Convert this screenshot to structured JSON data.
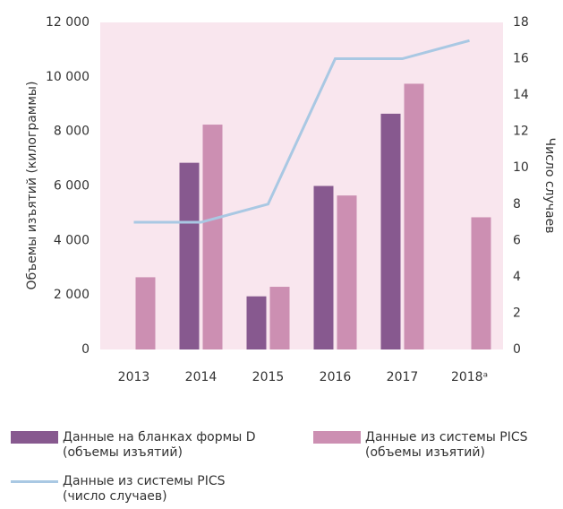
{
  "chart_data": {
    "type": "bar",
    "categories": [
      "2013",
      "2014",
      "2015",
      "2016",
      "2017",
      "2018ᵃ"
    ],
    "series": [
      {
        "name": "Данные на бланках формы D\n(объемы изъятий)",
        "color": "#87598f",
        "values": [
          null,
          6850,
          1950,
          6000,
          8650,
          null
        ]
      },
      {
        "name": "Данные из системы PICS\n(объемы изъятий)",
        "color": "#cc8fb2",
        "values": [
          2650,
          8250,
          2300,
          5650,
          9750,
          4850
        ]
      },
      {
        "name": "Данные из системы PICS\n(число случаев)",
        "color": "#a9c8e3",
        "type": "line",
        "axis": "y2",
        "values": [
          7,
          7,
          8,
          16,
          16,
          17
        ]
      }
    ],
    "ylabel": "Объемы изъятий (килограммы)",
    "y2label": "Число случаев",
    "ylim": [
      0,
      12000
    ],
    "yticks": [
      0,
      {
        "value": 2000,
        "label": "2 000"
      },
      {
        "value": 4000,
        "label": "4 000"
      },
      {
        "value": 6000,
        "label": "6 000"
      },
      {
        "value": 8000,
        "label": "8 000"
      },
      {
        "value": 10000,
        "label": "10 000"
      },
      {
        "value": 12000,
        "label": "12 000"
      }
    ],
    "y2lim": [
      0,
      18
    ],
    "y2ticks": [
      0,
      2,
      4,
      6,
      8,
      10,
      12,
      14,
      16,
      18
    ],
    "background": "#f9e6ee"
  }
}
